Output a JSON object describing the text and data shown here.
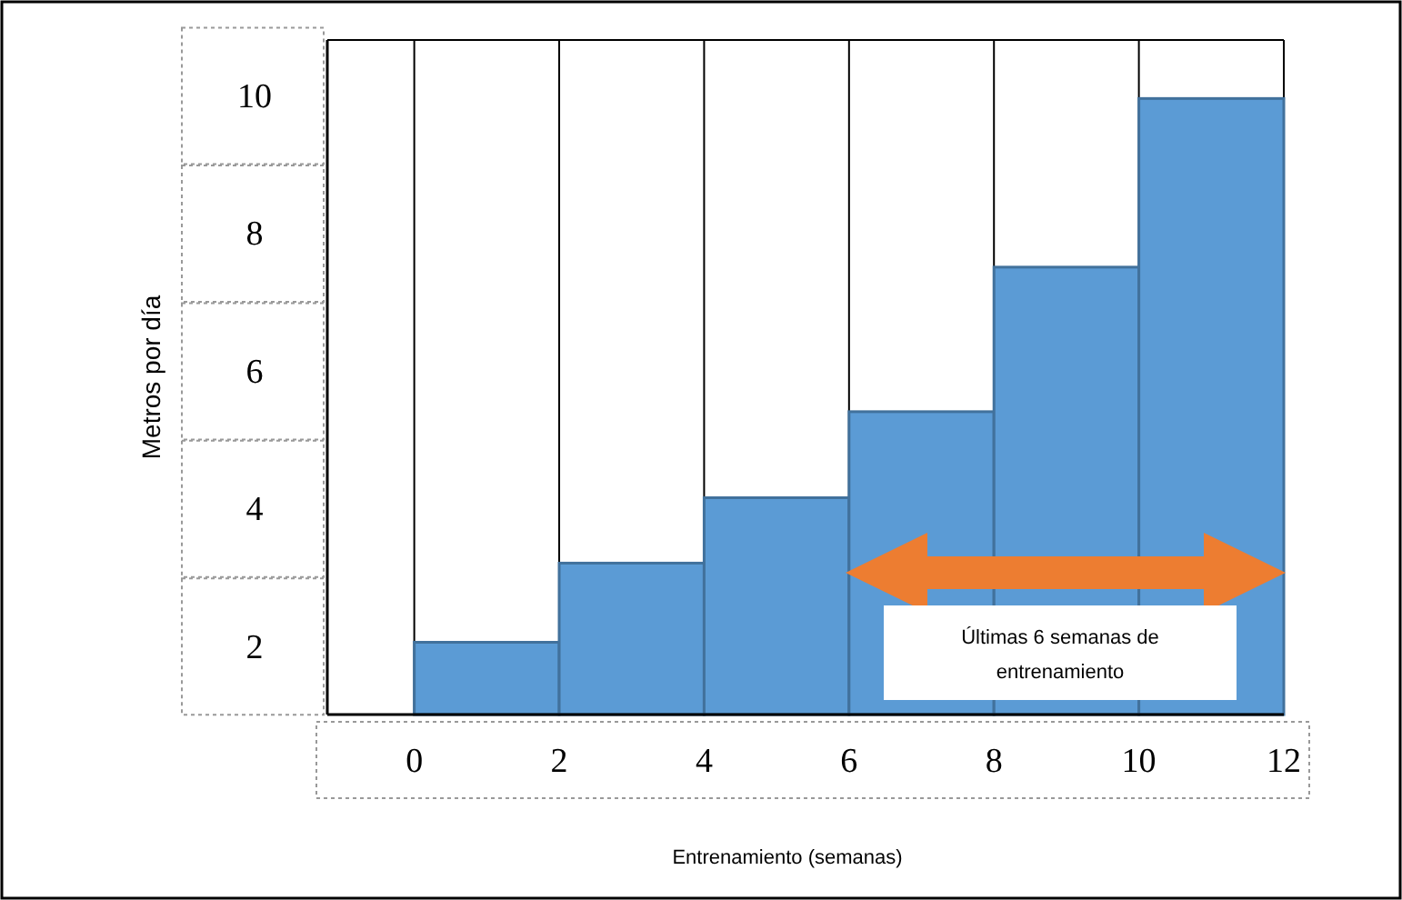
{
  "chart_data": {
    "type": "histogram",
    "xlabel": "Entrenamiento (semanas)",
    "ylabel": "Metros por día",
    "bins": [
      0,
      2,
      4,
      6,
      8,
      10,
      12
    ],
    "values": [
      2.05,
      3.2,
      4.15,
      5.4,
      7.5,
      9.95
    ],
    "color": "#5b9bd5",
    "xlim": [
      -1.2,
      12
    ],
    "xticks": [
      0,
      2,
      4,
      6,
      8,
      10,
      12
    ],
    "ylim": [
      1,
      10.8
    ],
    "yticks": [
      2,
      4,
      6,
      8,
      10
    ],
    "grid": "x",
    "annotations": [
      "Últimas 6 semanas de entrenamiento"
    ]
  }
}
